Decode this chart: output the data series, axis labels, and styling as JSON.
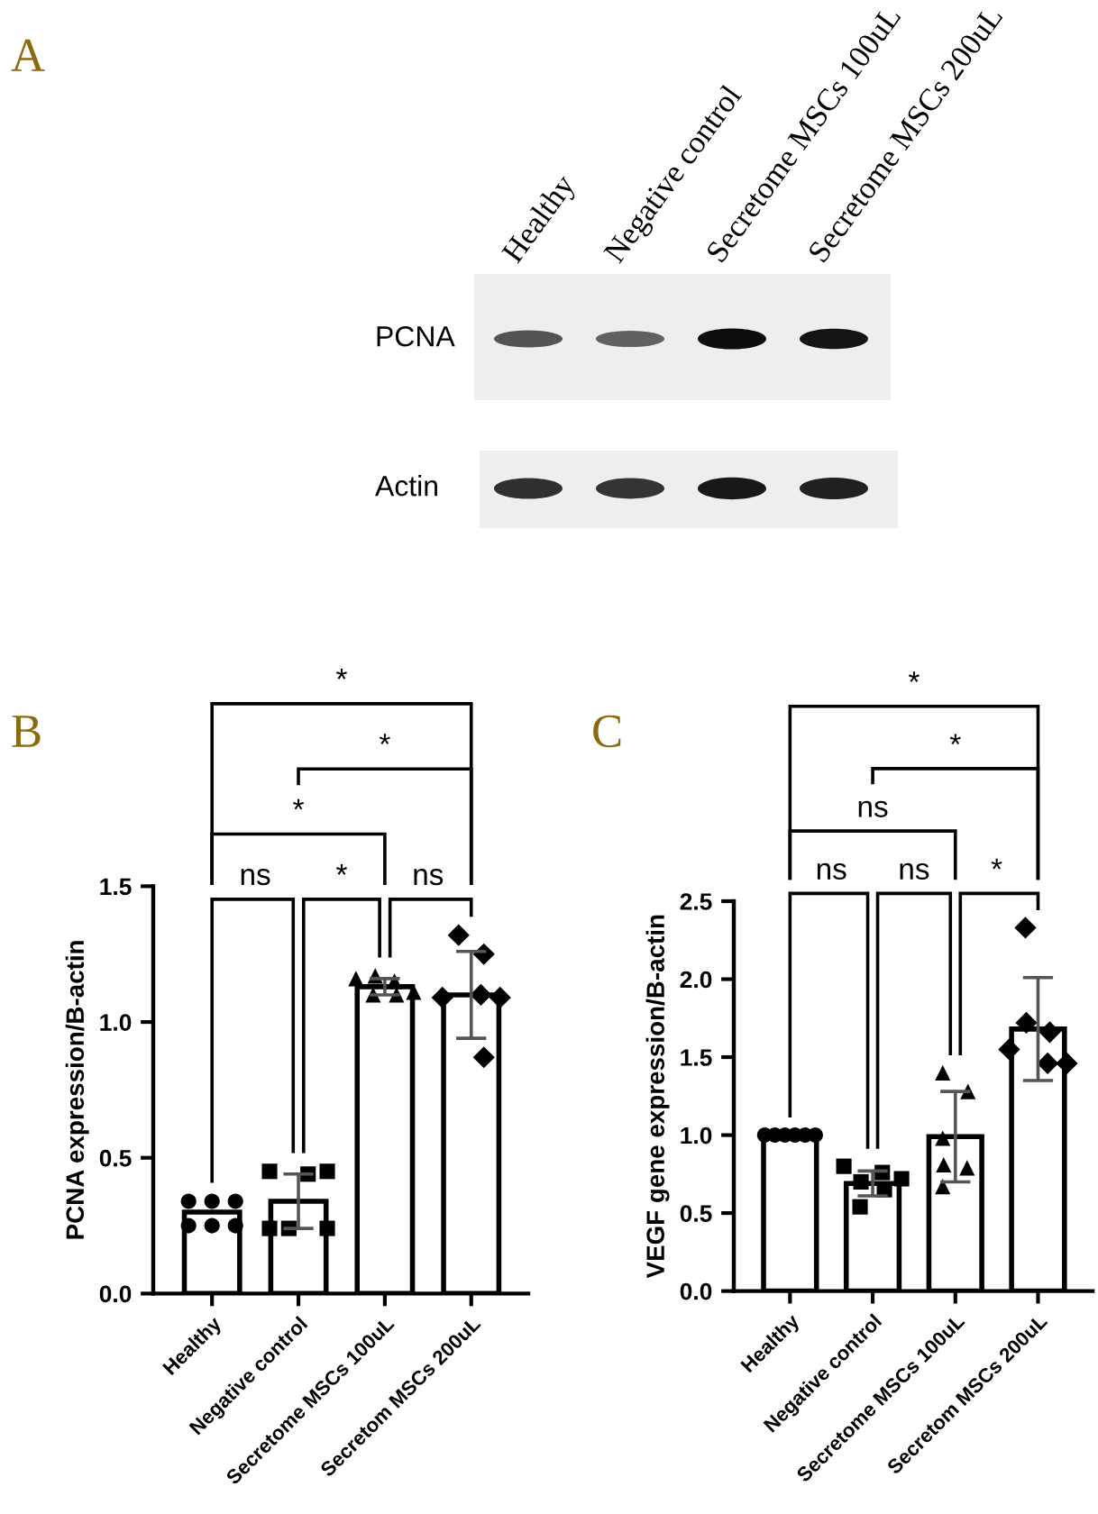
{
  "chart_data": [
    {
      "type": "other",
      "title": "A",
      "categories": [
        "Healthy",
        "Negative control",
        "Secretome MSCs 100uL",
        "Secretome MSCs 200uL"
      ],
      "annotations": [
        "PCNA",
        "Actin"
      ]
    },
    {
      "type": "bar",
      "title": "B",
      "ylabel": "PCNA expression/B-actin",
      "categories": [
        "Healthy",
        "Negative control",
        "Secretome MSCs 100uL",
        "Secretom MSCs 200uL"
      ],
      "series": [
        {
          "type": "bar",
          "color": "#ffffff",
          "values": [
            0.3,
            0.34,
            1.13,
            1.1
          ],
          "errors": [
            null,
            0.1,
            0.03,
            0.16
          ]
        },
        {
          "type": "scatter",
          "marker": "circle",
          "color": "#000000",
          "x": [
            "Healthy",
            "Healthy",
            "Healthy",
            "Healthy",
            "Healthy",
            "Healthy"
          ],
          "values": [
            0.34,
            0.34,
            0.34,
            0.25,
            0.25,
            0.25
          ]
        },
        {
          "type": "scatter",
          "marker": "square",
          "color": "#000000",
          "x": [
            "Negative control",
            "Negative control",
            "Negative control",
            "Negative control",
            "Negative control",
            "Negative control"
          ],
          "values": [
            0.45,
            0.44,
            0.45,
            0.24,
            0.24,
            0.24
          ]
        },
        {
          "type": "scatter",
          "marker": "triangle",
          "color": "#000000",
          "x": [
            "Secretome MSCs 100uL",
            "Secretome MSCs 100uL",
            "Secretome MSCs 100uL",
            "Secretome MSCs 100uL",
            "Secretome MSCs 100uL",
            "Secretome MSCs 100uL"
          ],
          "values": [
            1.16,
            1.17,
            1.15,
            1.1,
            1.11,
            1.1
          ]
        },
        {
          "type": "scatter",
          "marker": "diamond",
          "color": "#000000",
          "x": [
            "Secretom MSCs 200uL",
            "Secretom MSCs 200uL",
            "Secretom MSCs 200uL",
            "Secretom MSCs 200uL",
            "Secretom MSCs 200uL",
            "Secretom MSCs 200uL"
          ],
          "values": [
            1.32,
            1.25,
            1.09,
            1.1,
            1.09,
            0.87
          ]
        }
      ],
      "ylim": [
        0,
        1.5
      ],
      "yticks": [
        {
          "value": 0,
          "label": "0.0"
        },
        {
          "value": 0.5,
          "label": "0.5"
        },
        {
          "value": 1,
          "label": "1.0"
        },
        {
          "value": 1.5,
          "label": "1.5"
        }
      ],
      "annotations": [
        "*",
        "*",
        "*",
        "ns",
        "*",
        "ns"
      ]
    },
    {
      "type": "bar",
      "title": "C",
      "ylabel": "VEGF gene expression/B-actin",
      "categories": [
        "Healthy",
        "Negative control",
        "Secretome MSCs 100uL",
        "Secretom MSCs 200uL"
      ],
      "series": [
        {
          "type": "bar",
          "color": "#ffffff",
          "values": [
            1.0,
            0.69,
            0.99,
            1.68
          ],
          "errors": [
            null,
            0.08,
            0.29,
            0.33
          ]
        },
        {
          "type": "scatter",
          "marker": "circle",
          "color": "#000000",
          "x": [
            "Healthy",
            "Healthy",
            "Healthy",
            "Healthy",
            "Healthy",
            "Healthy"
          ],
          "values": [
            1.0,
            1.0,
            1.0,
            1.0,
            1.0,
            1.0
          ]
        },
        {
          "type": "scatter",
          "marker": "square",
          "color": "#000000",
          "x": [
            "Negative control",
            "Negative control",
            "Negative control",
            "Negative control",
            "Negative control",
            "Negative control"
          ],
          "values": [
            0.8,
            0.76,
            0.72,
            0.7,
            0.65,
            0.54
          ]
        },
        {
          "type": "scatter",
          "marker": "triangle",
          "color": "#000000",
          "x": [
            "Secretome MSCs 100uL",
            "Secretome MSCs 100uL",
            "Secretome MSCs 100uL",
            "Secretome MSCs 100uL",
            "Secretome MSCs 100uL",
            "Secretome MSCs 100uL"
          ],
          "values": [
            1.4,
            1.28,
            0.98,
            0.81,
            0.79,
            0.67
          ]
        },
        {
          "type": "scatter",
          "marker": "diamond",
          "color": "#000000",
          "x": [
            "Secretom MSCs 200uL",
            "Secretom MSCs 200uL",
            "Secretom MSCs 200uL",
            "Secretom MSCs 200uL",
            "Secretom MSCs 200uL",
            "Secretom MSCs 200uL"
          ],
          "values": [
            2.33,
            1.72,
            1.66,
            1.55,
            1.46,
            1.46
          ]
        }
      ],
      "ylim": [
        0,
        2.5
      ],
      "yticks": [
        {
          "value": 0,
          "label": "0.0"
        },
        {
          "value": 0.5,
          "label": "0.5"
        },
        {
          "value": 1,
          "label": "1.0"
        },
        {
          "value": 1.5,
          "label": "1.5"
        },
        {
          "value": 2,
          "label": "2.0"
        },
        {
          "value": 2.5,
          "label": "2.5"
        }
      ],
      "annotations": [
        "*",
        "*",
        "ns",
        "ns",
        "ns",
        "*"
      ]
    }
  ]
}
